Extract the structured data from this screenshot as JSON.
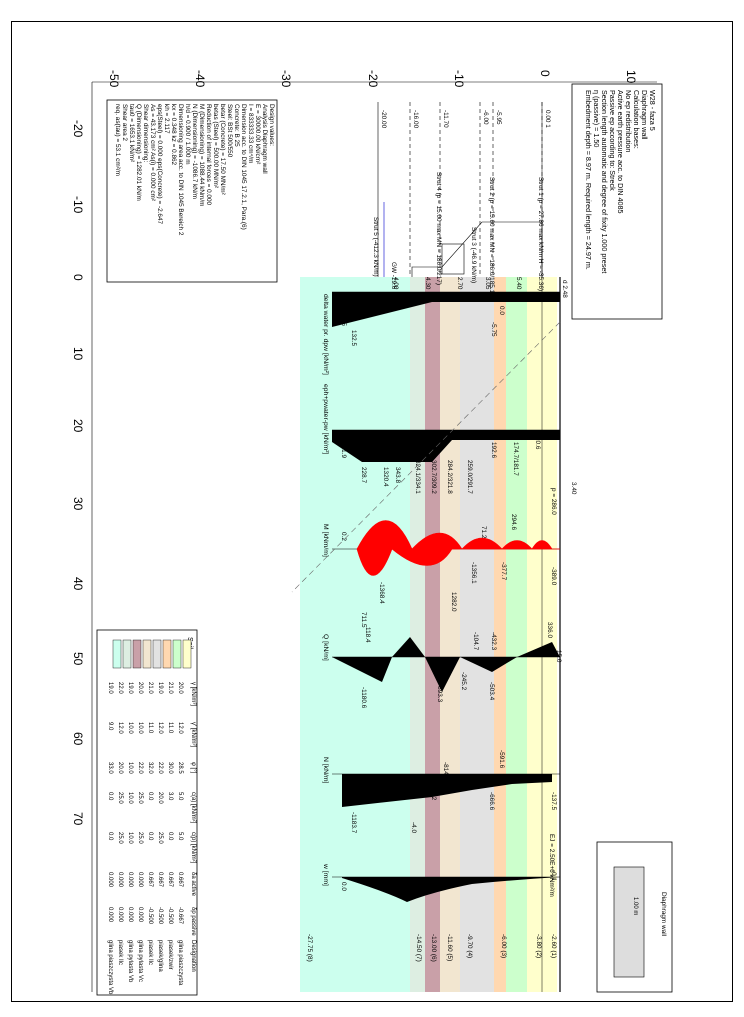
{
  "axes": {
    "depth_ticks": [
      "10",
      "0",
      "-10",
      "-20",
      "-30",
      "-40",
      "-50"
    ],
    "horizontal_ticks": [
      "-20",
      "-10",
      "0",
      "10",
      "20",
      "30",
      "40",
      "50",
      "60",
      "70"
    ]
  },
  "project_info": {
    "lines": [
      "W28 - faza 5",
      "Diaphragm wall",
      "Calculation bases:",
      "No ep redistribution",
      "Active earth pressure acc. to DIN 4085",
      "Passive ep according to: Streck",
      "Section length automatic and degree of fixity 1.000 preset",
      "η (passive) = 1.50",
      "Embedment depth = 8.97 m. Required length = 24.97 m."
    ]
  },
  "design_values": {
    "lines": [
      "Design values:",
      "Analysis Diaphragm wall",
      "E = 30000.00 kN/cm²",
      "I = 833333.33 cm⁴/m",
      "Dimension acc. to DIN 1045 17.2.1, Para.(6)",
      "Concrete: B 25",
      "Steel: BSt 500/550",
      "betar (Concrete) = 17.50 MN/m²",
      "betas (Steel) = 500.00 MN/m²",
      "Reduction of internal forces = 0.000",
      "M (Dimensioning) = 1088.44 kNm/m",
      "N (Dimensioning) = -1086.7 kN/m",
      "h/d = 0.900 / 1.000 m",
      "Dimensioning area acc. to DIN 1045 Bereich 2",
      "kx = 0.348  kz = 0.862",
      "kh = 2.117",
      "eps(Steel) = 0.000  eps(Concrete) = -2.647",
      "As = 43.173 cm²  As(i) = 0.000 cm²",
      "Shear dimensioning:",
      "Q (Dimensioning) = 1282.01 kN/m",
      "tau0 = 1653.1 kN/m²",
      "Shear area 2",
      "req. as(tau) = 53.1 cm²/m"
    ]
  },
  "levels": [
    "0.00 1",
    "-5.95",
    "-6.00",
    "-11.70",
    "-16.00",
    "-20.00"
  ],
  "struts": [
    "Strut 1 (p = 27.86 max kN/m H = -35.36)",
    "Strut 2 (p = 15.60 max MN = 186.0/185.1)",
    "Strut 3 (-46.9 kN/m)",
    "Strut 4 (p = 15.00 max MN = 186.0/217)",
    "Strut 5 (-412.3 kN/m)"
  ],
  "groundwater_label": "GW -19.6",
  "wall_top_label": "d 2.48",
  "dims": [
    "5.40",
    "3.05",
    "2.70",
    "4.30",
    "4.00"
  ],
  "panel_labels": {
    "p1": "delta water pr. dpw [kN/m²]",
    "p2": "eph+pwater-pw [kN/m²]",
    "p3": "M [kNm/m]",
    "p4": "Q [kN/m]",
    "p5": "N [kN/m]",
    "p6": "w [mm]"
  },
  "panel_values": {
    "p1": [
      "0.0",
      "-5.75",
      "132.5",
      "132.5"
    ],
    "p2": [
      "20.6",
      "174.7/181.7",
      "192.6",
      "259.0/291.7",
      "284.2/321.8",
      "302.7/309.2",
      "324.1/334.1",
      "343.8",
      "1320.4",
      "101.9",
      "228.7"
    ],
    "p3": [
      "294.6",
      "71.2",
      "-377.7",
      "-1356.1",
      "1282.0",
      "-1368.4",
      "711.5",
      "0.2",
      "-389.0",
      "p = 286.0"
    ],
    "p4": [
      "15.0",
      "-432.3",
      "-503.4",
      "-104.7",
      "-245.2",
      "-893.3",
      "118.4",
      "-1180.6",
      "336.0"
    ],
    "p5": [
      "-137.5",
      "-591.6",
      "-666.6",
      "-814.2",
      "-838.2",
      "-1183.7"
    ],
    "p6": [
      "-0.1",
      "-4.0",
      "0.0",
      "EJ = 2.50E+6 kNm²/m"
    ]
  },
  "elevation_labels": [
    "-2.60 (1)",
    "-3.80 (2)",
    "-6.00 (3)",
    "-9.70 (4)",
    "-11.60 (5)",
    "-13.00 (6)",
    "-14.50 (7)",
    "-27.75 (8)"
  ],
  "dimension_label": "3.40",
  "soil_table": {
    "title": "Soil",
    "headers": [
      "γ [kN/m³]",
      "γ' [kN/m³]",
      "φ [°]",
      "c(a) [kN/m²]",
      "c(p) [kN/m²]",
      "δa active",
      "δp passive",
      "Designation"
    ],
    "rows": [
      {
        "color": "#FFFFCC",
        "values": [
          "20.0",
          "12.0",
          "28.5",
          "5.0",
          "5.0",
          "0.667",
          "-0.667",
          "glina piaszczysta"
        ]
      },
      {
        "color": "#CCFFCC",
        "values": [
          "21.0",
          "11.0",
          "30.0",
          "3.0",
          "0.0",
          "0.667",
          "-0.500",
          "piasek/zwir"
        ]
      },
      {
        "color": "#FFD8B0",
        "values": [
          "19.0",
          "12.0",
          "22.0",
          "20.0",
          "25.0",
          "0.667",
          "-0.500",
          "piasek/glina"
        ]
      },
      {
        "color": "#E2E2E2",
        "values": [
          "21.0",
          "11.0",
          "32.0",
          "0.0",
          "0.0",
          "0.667",
          "-0.500",
          "piasek Ilc"
        ]
      },
      {
        "color": "#F2E6D0",
        "values": [
          "20.0",
          "10.0",
          "22.0",
          "25.0",
          "25.0",
          "0.000",
          "0.000",
          "glina pylasta Vc"
        ]
      },
      {
        "color": "#C9A0A8",
        "values": [
          "19.0",
          "10.0",
          "10.0",
          "10.0",
          "10.0",
          "0.000",
          "0.000",
          "glina pylasta Vb"
        ]
      },
      {
        "color": "#DDEEE2",
        "values": [
          "22.0",
          "12.0",
          "20.0",
          "25.0",
          "25.0",
          "0.000",
          "0.000",
          "piasek Ilc"
        ]
      },
      {
        "color": "#CCFFEE",
        "values": [
          "19.0",
          "9.0",
          "33.0",
          "0.0",
          "0.0",
          "0.000",
          "0.000",
          "glina piaszczysta Vb"
        ]
      }
    ]
  },
  "legend": {
    "title": "Diaphragm wall",
    "scale": "1.00 m"
  },
  "colors": {
    "moment": "#FF0000",
    "diagram": "#000000",
    "water": "#0000CC"
  }
}
